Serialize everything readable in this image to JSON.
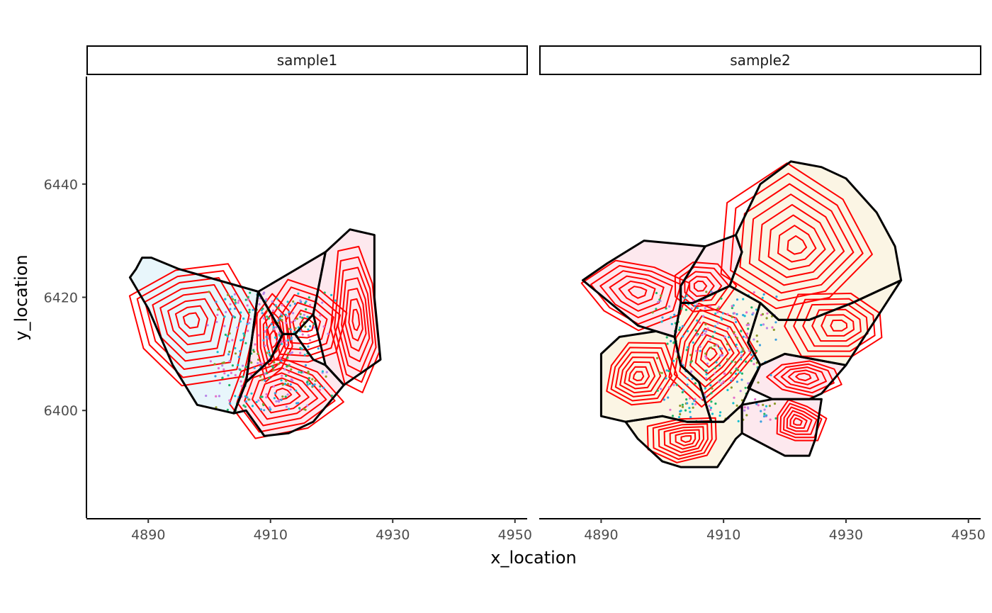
{
  "chart_data": {
    "type": "spatial-polygon-contour",
    "xlabel": "x_location",
    "ylabel": "y_location",
    "xlim": [
      4880,
      4952
    ],
    "ylim": [
      6381,
      6459
    ],
    "x_ticks": [
      4890,
      4910,
      4930,
      4950
    ],
    "y_ticks": [
      6400,
      6420,
      6440
    ],
    "colors": {
      "cell_outline": "#000000",
      "contour": "#ff0000",
      "fill_blue": "#e8f6fb",
      "fill_pink": "#fde8ee",
      "fill_cream": "#fbf5e4",
      "points": [
        "#3a9fe0",
        "#22b56a",
        "#e56dc8",
        "#8c9a2a",
        "#17becf",
        "#b784e8"
      ]
    },
    "panels": [
      {
        "strip": "sample1",
        "cells": [
          {
            "fill": "blue",
            "boundary": [
              [
                4887,
                6423.5
              ],
              [
                4888,
                6425
              ],
              [
                4889,
                6427
              ],
              [
                4890.5,
                6427
              ],
              [
                4895,
                6425
              ],
              [
                4908,
                6421
              ],
              [
                4906,
                6405
              ],
              [
                4904,
                6399.5
              ],
              [
                4902,
                6400
              ],
              [
                4898,
                6401
              ],
              [
                4894,
                6408
              ],
              [
                4890,
                6418
              ]
            ]
          },
          {
            "fill": "pink",
            "boundary": [
              [
                4908,
                6421
              ],
              [
                4912,
                6413.5
              ],
              [
                4910,
                6409
              ],
              [
                4906,
                6405
              ]
            ]
          },
          {
            "fill": "pink",
            "boundary": [
              [
                4908,
                6421
              ],
              [
                4919,
                6428
              ],
              [
                4917,
                6417
              ],
              [
                4914,
                6413.5
              ],
              [
                4912,
                6413.5
              ]
            ]
          },
          {
            "fill": "pink",
            "boundary": [
              [
                4919,
                6428
              ],
              [
                4923,
                6432
              ],
              [
                4927,
                6431
              ],
              [
                4927,
                6420
              ],
              [
                4928,
                6409
              ],
              [
                4922,
                6404.5
              ],
              [
                4919,
                6408
              ],
              [
                4917,
                6417
              ]
            ]
          },
          {
            "fill": "pink",
            "boundary": [
              [
                4910,
                6409
              ],
              [
                4912,
                6413.5
              ],
              [
                4914,
                6413.5
              ],
              [
                4917,
                6409
              ],
              [
                4919,
                6408
              ],
              [
                4922,
                6404.5
              ],
              [
                4917,
                6398
              ],
              [
                4913,
                6396
              ],
              [
                4909,
                6395.5
              ],
              [
                4906,
                6400
              ],
              [
                4904,
                6399.5
              ],
              [
                4906,
                6405
              ]
            ]
          }
        ],
        "contours": [
          {
            "center": [
              4897,
              6416
            ],
            "extent": [
              10,
              11
            ],
            "levels": 8
          },
          {
            "center": [
              4910.5,
              6412.5
            ],
            "extent": [
              3,
              7
            ],
            "levels": 5
          },
          {
            "center": [
              4916,
              6415
            ],
            "extent": [
              6,
              8
            ],
            "levels": 6
          },
          {
            "center": [
              4924,
              6416
            ],
            "extent": [
              3.5,
              14
            ],
            "levels": 7
          },
          {
            "center": [
              4912,
              6403
            ],
            "extent": [
              9,
              7
            ],
            "levels": 7
          }
        ],
        "points_region": {
          "x": [
            4899,
            4921
          ],
          "y": [
            6400,
            6421
          ],
          "count": 340
        }
      },
      {
        "strip": "sample2",
        "cells": [
          {
            "fill": "pink",
            "boundary": [
              [
                4887,
                6423
              ],
              [
                4891,
                6426
              ],
              [
                4897,
                6430
              ],
              [
                4907,
                6429
              ],
              [
                4903,
                6422
              ],
              [
                4903,
                6419
              ],
              [
                4902,
                6413
              ],
              [
                4899,
                6414
              ],
              [
                4896,
                6415
              ]
            ]
          },
          {
            "fill": "pink",
            "boundary": [
              [
                4907,
                6429
              ],
              [
                4912,
                6431
              ],
              [
                4913,
                6428
              ],
              [
                4911,
                6422
              ],
              [
                4905,
                6419
              ],
              [
                4903,
                6419
              ],
              [
                4903,
                6422
              ]
            ]
          },
          {
            "fill": "cream",
            "boundary": [
              [
                4912,
                6431
              ],
              [
                4916,
                6440
              ],
              [
                4921,
                6444
              ],
              [
                4926,
                6443
              ],
              [
                4930,
                6441
              ],
              [
                4935,
                6435
              ],
              [
                4938,
                6429
              ],
              [
                4939,
                6423
              ],
              [
                4931,
                6419
              ],
              [
                4924,
                6416
              ],
              [
                4919,
                6416
              ],
              [
                4916,
                6419
              ],
              [
                4911,
                6422
              ],
              [
                4913,
                6428
              ]
            ]
          },
          {
            "fill": "cream",
            "boundary": [
              [
                4916,
                6419
              ],
              [
                4919,
                6416
              ],
              [
                4924,
                6416
              ],
              [
                4931,
                6419
              ],
              [
                4939,
                6423
              ],
              [
                4930,
                6408
              ],
              [
                4925,
                6409
              ],
              [
                4920,
                6410
              ],
              [
                4916,
                6408
              ],
              [
                4914,
                6412
              ]
            ]
          },
          {
            "fill": "cream",
            "boundary": [
              [
                4903,
                6419
              ],
              [
                4905,
                6419
              ],
              [
                4911,
                6422
              ],
              [
                4916,
                6419
              ],
              [
                4914,
                6412
              ],
              [
                4916,
                6408
              ],
              [
                4913,
                6401
              ],
              [
                4910,
                6398
              ],
              [
                4908,
                6398
              ],
              [
                4906,
                6405
              ],
              [
                4903,
                6408
              ],
              [
                4902,
                6413
              ]
            ]
          },
          {
            "fill": "cream",
            "boundary": [
              [
                4890,
                6410
              ],
              [
                4893,
                6413
              ],
              [
                4899,
                6414
              ],
              [
                4902,
                6413
              ],
              [
                4903,
                6408
              ],
              [
                4906,
                6405
              ],
              [
                4908,
                6398
              ],
              [
                4904,
                6398
              ],
              [
                4900,
                6399
              ],
              [
                4894,
                6398
              ],
              [
                4890,
                6399
              ]
            ]
          },
          {
            "fill": "pink",
            "boundary": [
              [
                4916,
                6408
              ],
              [
                4920,
                6410
              ],
              [
                4925,
                6409
              ],
              [
                4930,
                6408
              ],
              [
                4926,
                6403
              ],
              [
                4924,
                6402
              ],
              [
                4918,
                6402
              ],
              [
                4914,
                6404
              ]
            ]
          },
          {
            "fill": "pink",
            "boundary": [
              [
                4913,
                6401
              ],
              [
                4918,
                6402
              ],
              [
                4924,
                6402
              ],
              [
                4926,
                6402
              ],
              [
                4925,
                6395
              ],
              [
                4924,
                6392
              ],
              [
                4920,
                6392
              ],
              [
                4913,
                6396
              ]
            ]
          },
          {
            "fill": "cream",
            "boundary": [
              [
                4894,
                6398
              ],
              [
                4896,
                6395
              ],
              [
                4900,
                6391
              ],
              [
                4903,
                6390
              ],
              [
                4909,
                6390
              ],
              [
                4912,
                6395
              ],
              [
                4913,
                6396
              ],
              [
                4913,
                6401
              ],
              [
                4910,
                6398
              ],
              [
                4908,
                6398
              ],
              [
                4904,
                6398
              ],
              [
                4900,
                6399
              ]
            ]
          }
        ],
        "contours": [
          {
            "center": [
              4896,
              6421
            ],
            "extent": [
              8,
              6
            ],
            "levels": 6
          },
          {
            "center": [
              4906,
              6422
            ],
            "extent": [
              5,
              5
            ],
            "levels": 5
          },
          {
            "center": [
              4922,
              6429
            ],
            "extent": [
              11,
              12
            ],
            "levels": 8
          },
          {
            "center": [
              4929,
              6415
            ],
            "extent": [
              9,
              6
            ],
            "levels": 6
          },
          {
            "center": [
              4908,
              6410
            ],
            "extent": [
              7,
              8
            ],
            "levels": 8
          },
          {
            "center": [
              4896,
              6406
            ],
            "extent": [
              6,
              6
            ],
            "levels": 7
          },
          {
            "center": [
              4923,
              6406
            ],
            "extent": [
              6,
              3
            ],
            "levels": 5
          },
          {
            "center": [
              4922,
              6398
            ],
            "extent": [
              4,
              4
            ],
            "levels": 6
          },
          {
            "center": [
              4904,
              6395
            ],
            "extent": [
              6,
              4
            ],
            "levels": 7
          }
        ],
        "points_region": {
          "x": [
            4898,
            4920
          ],
          "y": [
            6398,
            6421
          ],
          "count": 320
        }
      }
    ]
  }
}
